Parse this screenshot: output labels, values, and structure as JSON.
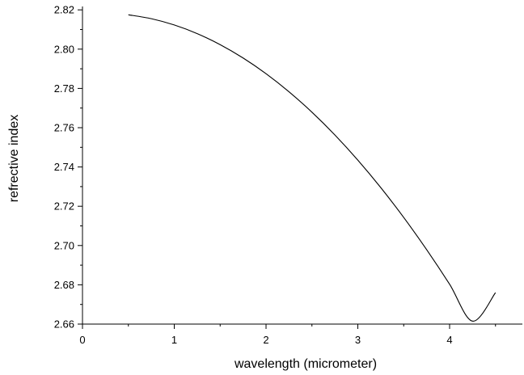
{
  "chart_data": {
    "type": "line",
    "title": "",
    "xlabel": "wavelength (micrometer)",
    "ylabel": "refrective index",
    "xlim": [
      0,
      4.8
    ],
    "ylim": [
      2.66,
      2.824
    ],
    "xticks": [
      "0",
      "1",
      "2",
      "3",
      "4"
    ],
    "yticks": [
      "2.66",
      "2.68",
      "2.70",
      "2.72",
      "2.74",
      "2.76",
      "2.78",
      "2.80",
      "2.82"
    ],
    "grid": false,
    "series": [
      {
        "color": "#000000",
        "x": [
          0.5,
          0.75,
          1.0,
          1.25,
          1.5,
          1.75,
          2.0,
          2.25,
          2.5,
          2.75,
          3.0,
          3.25,
          3.5,
          3.75,
          4.0,
          4.25,
          4.5
        ],
        "y": [
          2.8175,
          2.8155,
          2.8123,
          2.8079,
          2.8023,
          2.7955,
          2.7875,
          2.7783,
          2.7679,
          2.7563,
          2.7435,
          2.7295,
          2.7143,
          2.6979,
          2.6803,
          2.6615,
          2.676
        ]
      }
    ]
  }
}
